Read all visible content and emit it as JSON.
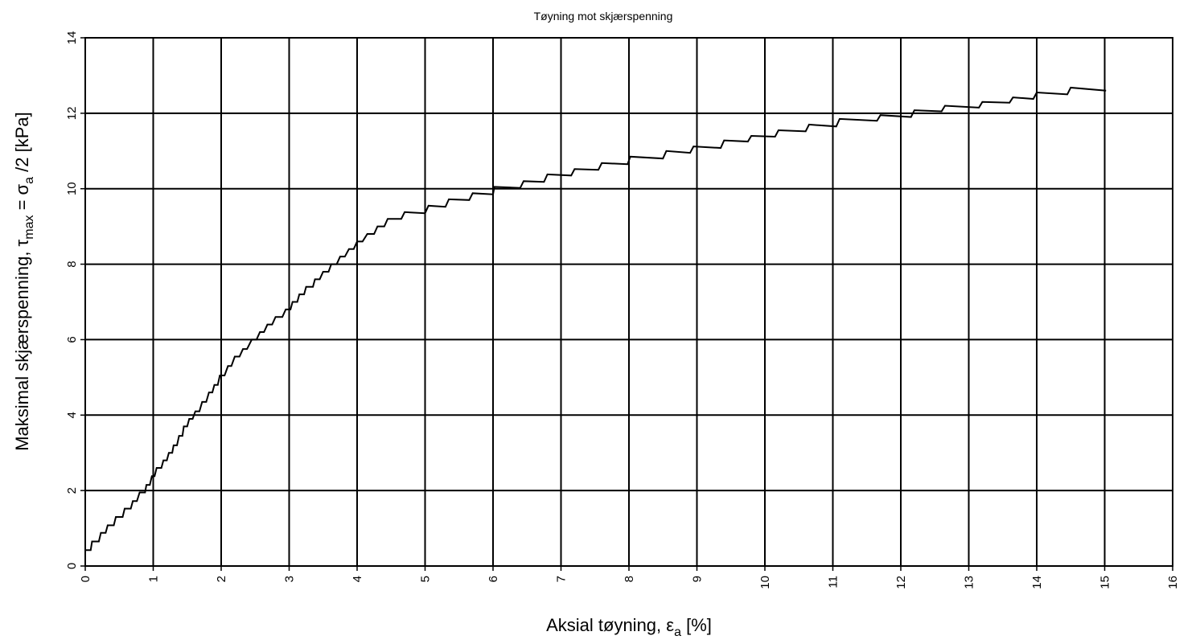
{
  "chart_data": {
    "type": "line",
    "title": "Tøyning mot skjærspenning",
    "x_label": [
      "Aksial tøyning, ε",
      "a",
      " [%]"
    ],
    "y_label": [
      "Maksimal skjærspenning, τ",
      "max",
      " = σ",
      "a",
      " /2  [kPa]"
    ],
    "xlim": [
      0,
      16
    ],
    "ylim": [
      0,
      14
    ],
    "xticks": [
      0,
      1,
      2,
      3,
      4,
      5,
      6,
      7,
      8,
      9,
      10,
      11,
      12,
      13,
      14,
      15,
      16
    ],
    "yticks": [
      0,
      2,
      4,
      6,
      8,
      10,
      12,
      14
    ],
    "grid": true,
    "x": [
      0,
      0.08,
      0.1,
      0.2,
      0.23,
      0.3,
      0.33,
      0.42,
      0.45,
      0.55,
      0.58,
      0.67,
      0.7,
      0.76,
      0.8,
      0.88,
      0.9,
      0.95,
      0.98,
      1.02,
      1.05,
      1.12,
      1.15,
      1.2,
      1.23,
      1.28,
      1.3,
      1.35,
      1.38,
      1.43,
      1.45,
      1.5,
      1.53,
      1.58,
      1.62,
      1.68,
      1.72,
      1.78,
      1.82,
      1.87,
      1.9,
      1.95,
      1.98,
      2.05,
      2.1,
      2.15,
      2.2,
      2.27,
      2.32,
      2.38,
      2.45,
      2.52,
      2.57,
      2.63,
      2.68,
      2.75,
      2.8,
      2.9,
      2.95,
      3.02,
      3.05,
      3.12,
      3.15,
      3.22,
      3.25,
      3.35,
      3.38,
      3.45,
      3.5,
      3.58,
      3.62,
      3.7,
      3.75,
      3.82,
      3.88,
      3.95,
      4.0,
      4.08,
      4.15,
      4.25,
      4.3,
      4.4,
      4.45,
      4.65,
      4.7,
      5.0,
      5.05,
      5.3,
      5.35,
      5.65,
      5.7,
      6.0,
      6.02,
      6.4,
      6.45,
      6.75,
      6.8,
      7.15,
      7.2,
      7.55,
      7.6,
      7.98,
      8.02,
      8.5,
      8.55,
      8.9,
      8.95,
      9.35,
      9.4,
      9.75,
      9.8,
      10.15,
      10.2,
      10.6,
      10.65,
      11.05,
      11.1,
      11.65,
      11.7,
      12.15,
      12.2,
      12.6,
      12.65,
      13.15,
      13.2,
      13.6,
      13.65,
      13.95,
      14.0,
      14.45,
      14.5,
      15.02
    ],
    "series": [
      {
        "color": "#000000",
        "values": [
          0.42,
          0.42,
          0.65,
          0.65,
          0.88,
          0.88,
          1.08,
          1.08,
          1.3,
          1.3,
          1.52,
          1.52,
          1.72,
          1.72,
          1.95,
          1.95,
          2.15,
          2.15,
          2.38,
          2.38,
          2.6,
          2.6,
          2.8,
          2.8,
          3.0,
          3.0,
          3.2,
          3.2,
          3.45,
          3.45,
          3.7,
          3.7,
          3.9,
          3.9,
          4.1,
          4.1,
          4.35,
          4.35,
          4.6,
          4.6,
          4.8,
          4.8,
          5.05,
          5.05,
          5.3,
          5.3,
          5.55,
          5.55,
          5.75,
          5.75,
          6.0,
          6.0,
          6.2,
          6.2,
          6.4,
          6.4,
          6.6,
          6.6,
          6.8,
          6.8,
          7.0,
          7.0,
          7.2,
          7.2,
          7.4,
          7.4,
          7.6,
          7.6,
          7.8,
          7.8,
          8.0,
          8.0,
          8.2,
          8.2,
          8.4,
          8.4,
          8.6,
          8.6,
          8.8,
          8.8,
          9.0,
          9.0,
          9.2,
          9.2,
          9.38,
          9.35,
          9.55,
          9.52,
          9.72,
          9.7,
          9.88,
          9.85,
          10.05,
          10.02,
          10.2,
          10.18,
          10.38,
          10.35,
          10.52,
          10.5,
          10.68,
          10.65,
          10.85,
          10.8,
          11.0,
          10.95,
          11.12,
          11.08,
          11.28,
          11.25,
          11.4,
          11.38,
          11.55,
          11.52,
          11.7,
          11.65,
          11.85,
          11.8,
          11.95,
          11.9,
          12.08,
          12.05,
          12.2,
          12.15,
          12.3,
          12.28,
          12.42,
          12.38,
          12.55,
          12.5,
          12.68,
          12.6
        ]
      }
    ]
  }
}
